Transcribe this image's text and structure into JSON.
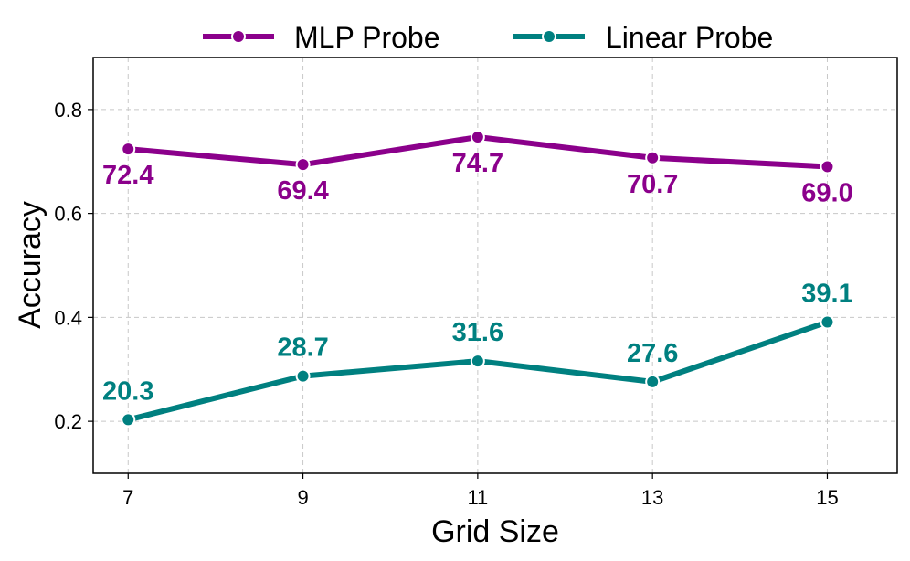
{
  "chart_data": {
    "type": "line",
    "title": "",
    "xlabel": "Grid Size",
    "ylabel": "Accuracy",
    "x": [
      7,
      9,
      11,
      13,
      15
    ],
    "xticks": [
      "7",
      "9",
      "11",
      "13",
      "15"
    ],
    "yticks": [
      "0.2",
      "0.4",
      "0.6",
      "0.8"
    ],
    "ytick_values": [
      0.2,
      0.4,
      0.6,
      0.8
    ],
    "xlim": [
      6.6,
      15.8
    ],
    "ylim": [
      0.1,
      0.9
    ],
    "grid": true,
    "legend_position": "top-center, outside plot",
    "series": [
      {
        "name": "MLP Probe",
        "color": "#8b008b",
        "values": [
          0.724,
          0.694,
          0.747,
          0.707,
          0.69
        ],
        "labels": [
          "72.4",
          "69.4",
          "74.7",
          "70.7",
          "69.0"
        ],
        "label_position": "below"
      },
      {
        "name": "Linear Probe",
        "color": "#008080",
        "values": [
          0.203,
          0.287,
          0.316,
          0.276,
          0.391
        ],
        "labels": [
          "20.3",
          "28.7",
          "31.6",
          "27.6",
          "39.1"
        ],
        "label_position": "above"
      }
    ]
  }
}
